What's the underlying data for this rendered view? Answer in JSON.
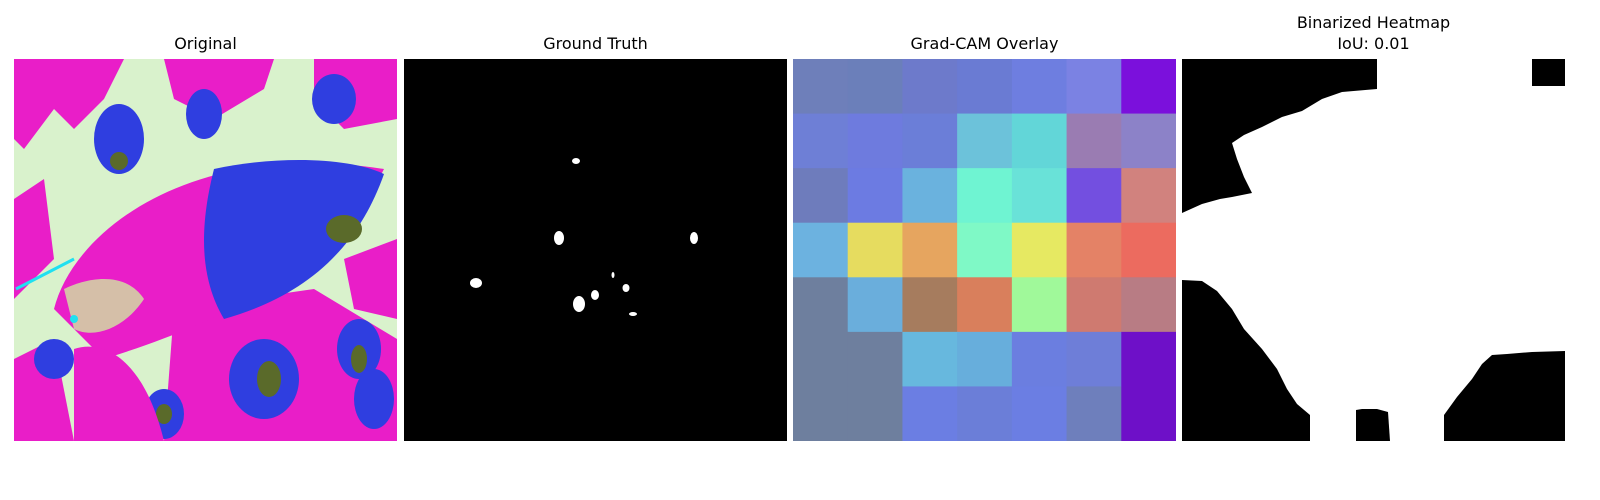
{
  "panels": {
    "original": {
      "title": "Original"
    },
    "ground_truth": {
      "title": "Ground Truth"
    },
    "gradcam": {
      "title": "Grad-CAM Overlay"
    },
    "binarized": {
      "title": "Binarized Heatmap",
      "subtitle": "IoU: 0.01"
    }
  },
  "colors": {
    "magenta": "#e91ec8",
    "blue": "#2f3ee0",
    "pale_green": "#d9f2cc",
    "olive": "#5a6a2a",
    "cyan": "#20e0f0",
    "black": "#000000",
    "white": "#ffffff"
  },
  "heatmap_grid": [
    [
      "#6e7fba",
      "#6b7fba",
      "#6d7acb",
      "#6a7bd3",
      "#6e7ee0",
      "#7b82e3",
      "#7b10dc"
    ],
    [
      "#6e7fd6",
      "#6e7bde",
      "#6b7ed8",
      "#6cc2da",
      "#62d6d8",
      "#9a7cb2",
      "#8c82c8"
    ],
    [
      "#6e7cbc",
      "#6c7be2",
      "#6ab2de",
      "#6ff4d2",
      "#69e2d8",
      "#734fe0",
      "#d1827e"
    ],
    [
      "#6cb2e0",
      "#e6dc5f",
      "#e6a55f",
      "#7ff9c6",
      "#e6e962",
      "#e48266",
      "#ec6b5f"
    ],
    [
      "#6e7f9e",
      "#6aaedc",
      "#a67c5e",
      "#d97f5c",
      "#a0f99a",
      "#cf7a70",
      "#b87c84"
    ],
    [
      "#6e7f9e",
      "#6e7f9e",
      "#67b8de",
      "#67aedc",
      "#6b7ee0",
      "#6e7ed8",
      "#6e10c8"
    ],
    [
      "#6e7f9e",
      "#6e7f9e",
      "#6b7ee3",
      "#6b7ed8",
      "#6b7ee3",
      "#6e7fbc",
      "#6e10c8"
    ]
  ]
}
